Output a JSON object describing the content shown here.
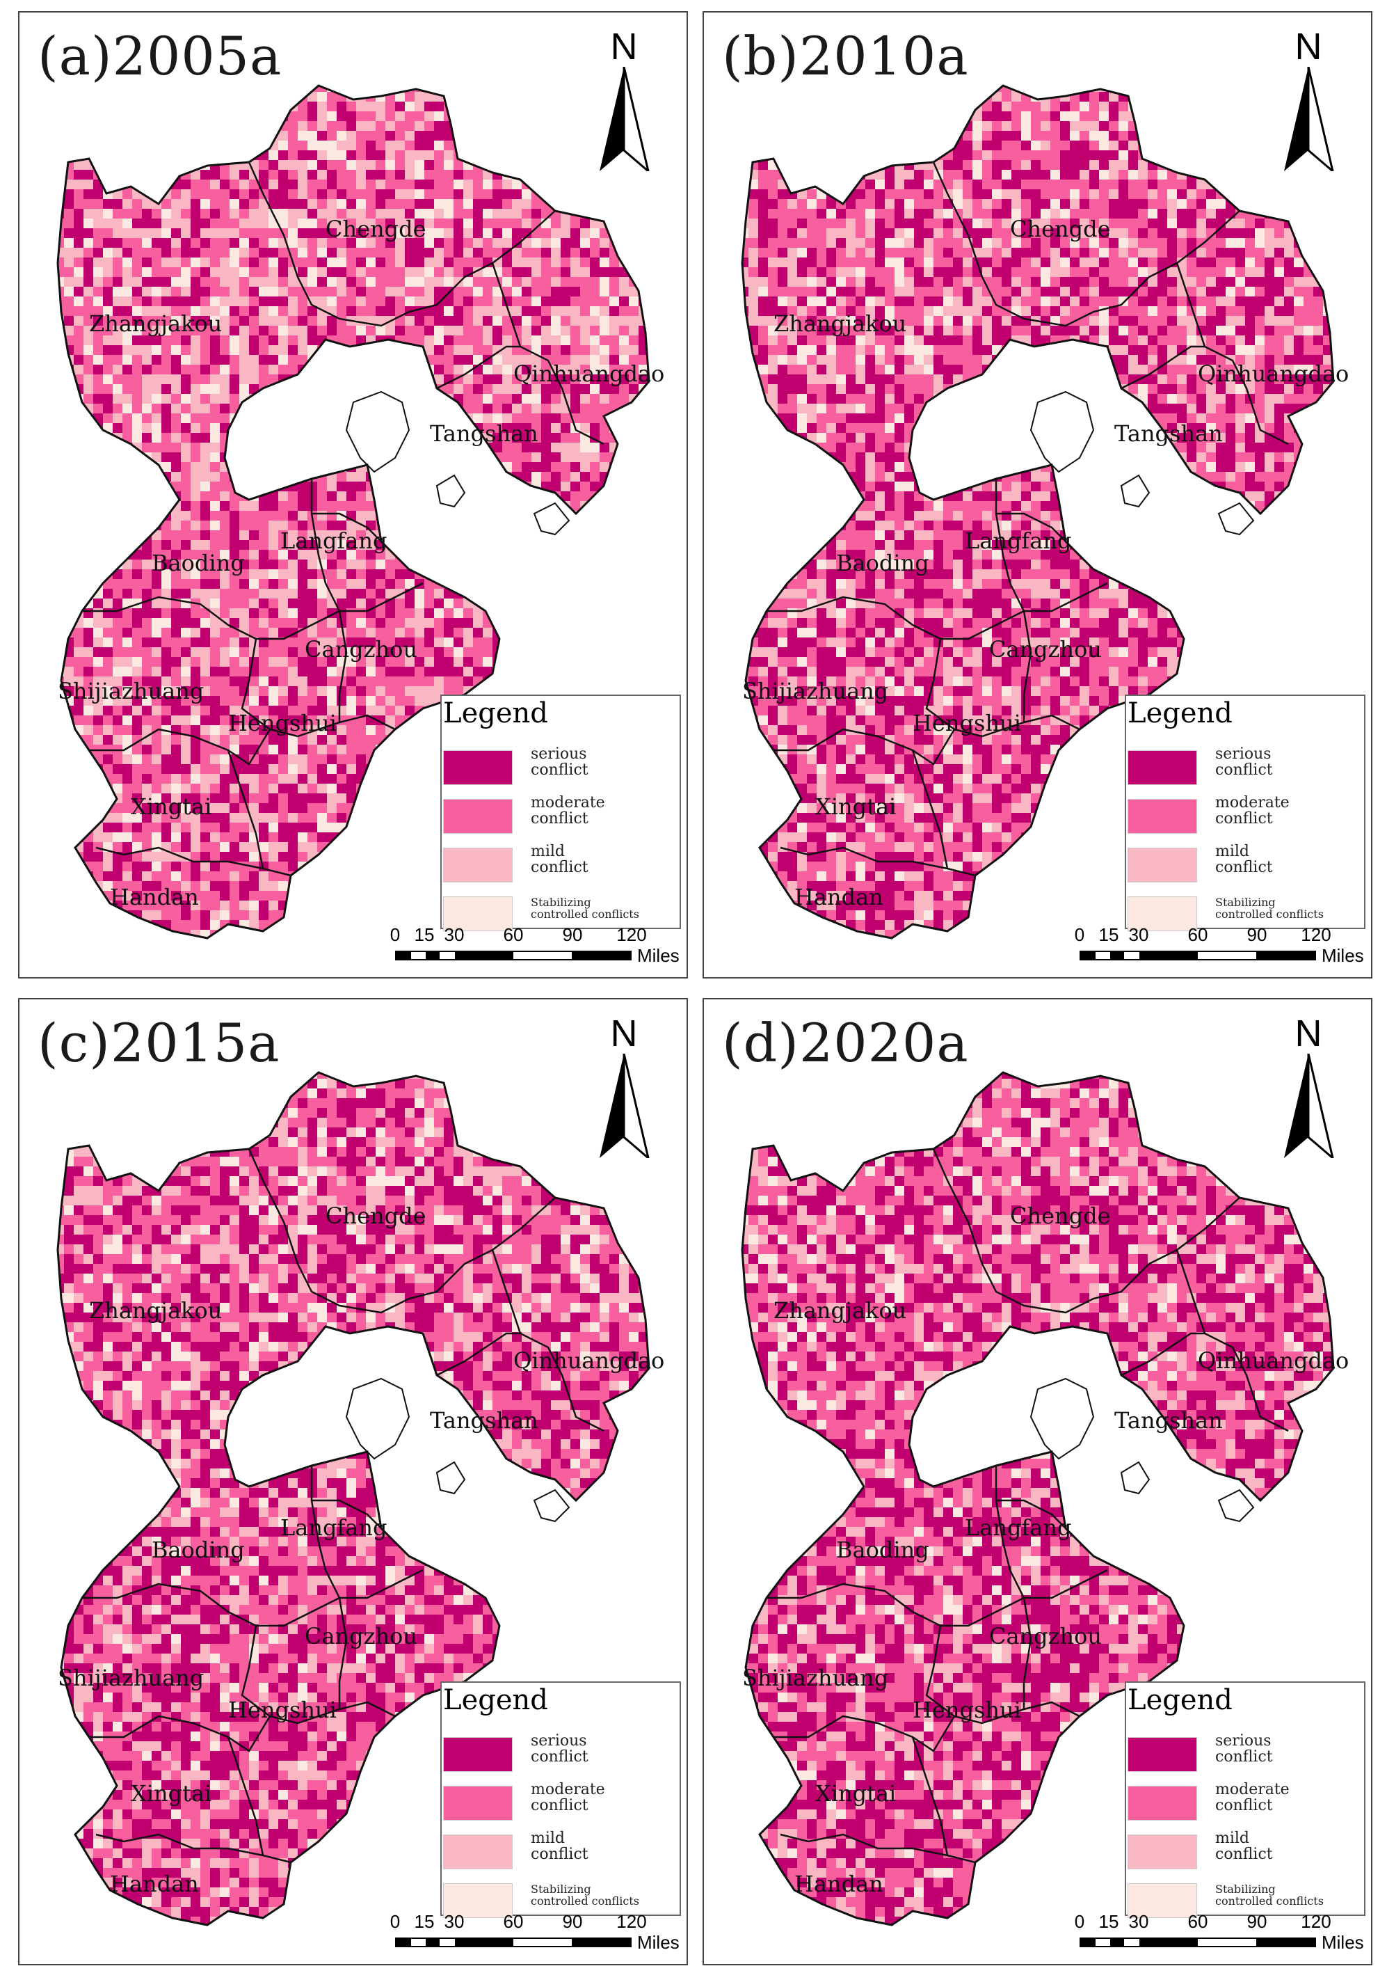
{
  "colors": {
    "serious": "#c0006e",
    "moderate": "#f75f9f",
    "mild": "#f9b7c3",
    "stabilizing": "#fbe8e0",
    "boundary": "#111111"
  },
  "legend": {
    "title": "Legend",
    "items": [
      {
        "key": "serious",
        "line1": "serious",
        "line2": "conflict"
      },
      {
        "key": "moderate",
        "line1": "moderate",
        "line2": "conflict"
      },
      {
        "key": "mild",
        "line1": "mild",
        "line2": "conflict"
      },
      {
        "key": "stabilizing",
        "line1": "Stabilizing",
        "line2": "controlled conflicts"
      }
    ]
  },
  "north_arrow": {
    "letter": "N"
  },
  "scale_bar": {
    "ticks": [
      "0",
      "15",
      "30",
      "60",
      "90",
      "120"
    ],
    "unit": "Miles"
  },
  "regions": [
    {
      "id": "chengde",
      "name": "Chengde"
    },
    {
      "id": "zhangjiakou",
      "name": "Zhangjakou"
    },
    {
      "id": "qinhuangdao",
      "name": "Qinhuangdao"
    },
    {
      "id": "tangshan",
      "name": "Tangshan"
    },
    {
      "id": "langfang",
      "name": "Langfang"
    },
    {
      "id": "baoding",
      "name": "Baoding"
    },
    {
      "id": "cangzhou",
      "name": "Cangzhou"
    },
    {
      "id": "shijiazhuang",
      "name": "Shijiazhuang"
    },
    {
      "id": "hengshui",
      "name": "Hengshui"
    },
    {
      "id": "xingtai",
      "name": "Xingtai"
    },
    {
      "id": "handan",
      "name": "Handan"
    }
  ],
  "panels": [
    {
      "id": "a",
      "title": "(a)2005a",
      "mix": {
        "serious": 0.22,
        "moderate": 0.38,
        "mild": 0.25,
        "stabilizing": 0.15
      }
    },
    {
      "id": "b",
      "title": "(b)2010a",
      "mix": {
        "serious": 0.3,
        "moderate": 0.36,
        "mild": 0.22,
        "stabilizing": 0.12
      }
    },
    {
      "id": "c",
      "title": "(c)2015a",
      "mix": {
        "serious": 0.32,
        "moderate": 0.36,
        "mild": 0.2,
        "stabilizing": 0.12
      }
    },
    {
      "id": "d",
      "title": "(d)2020a",
      "mix": {
        "serious": 0.34,
        "moderate": 0.35,
        "mild": 0.19,
        "stabilizing": 0.12
      }
    }
  ]
}
